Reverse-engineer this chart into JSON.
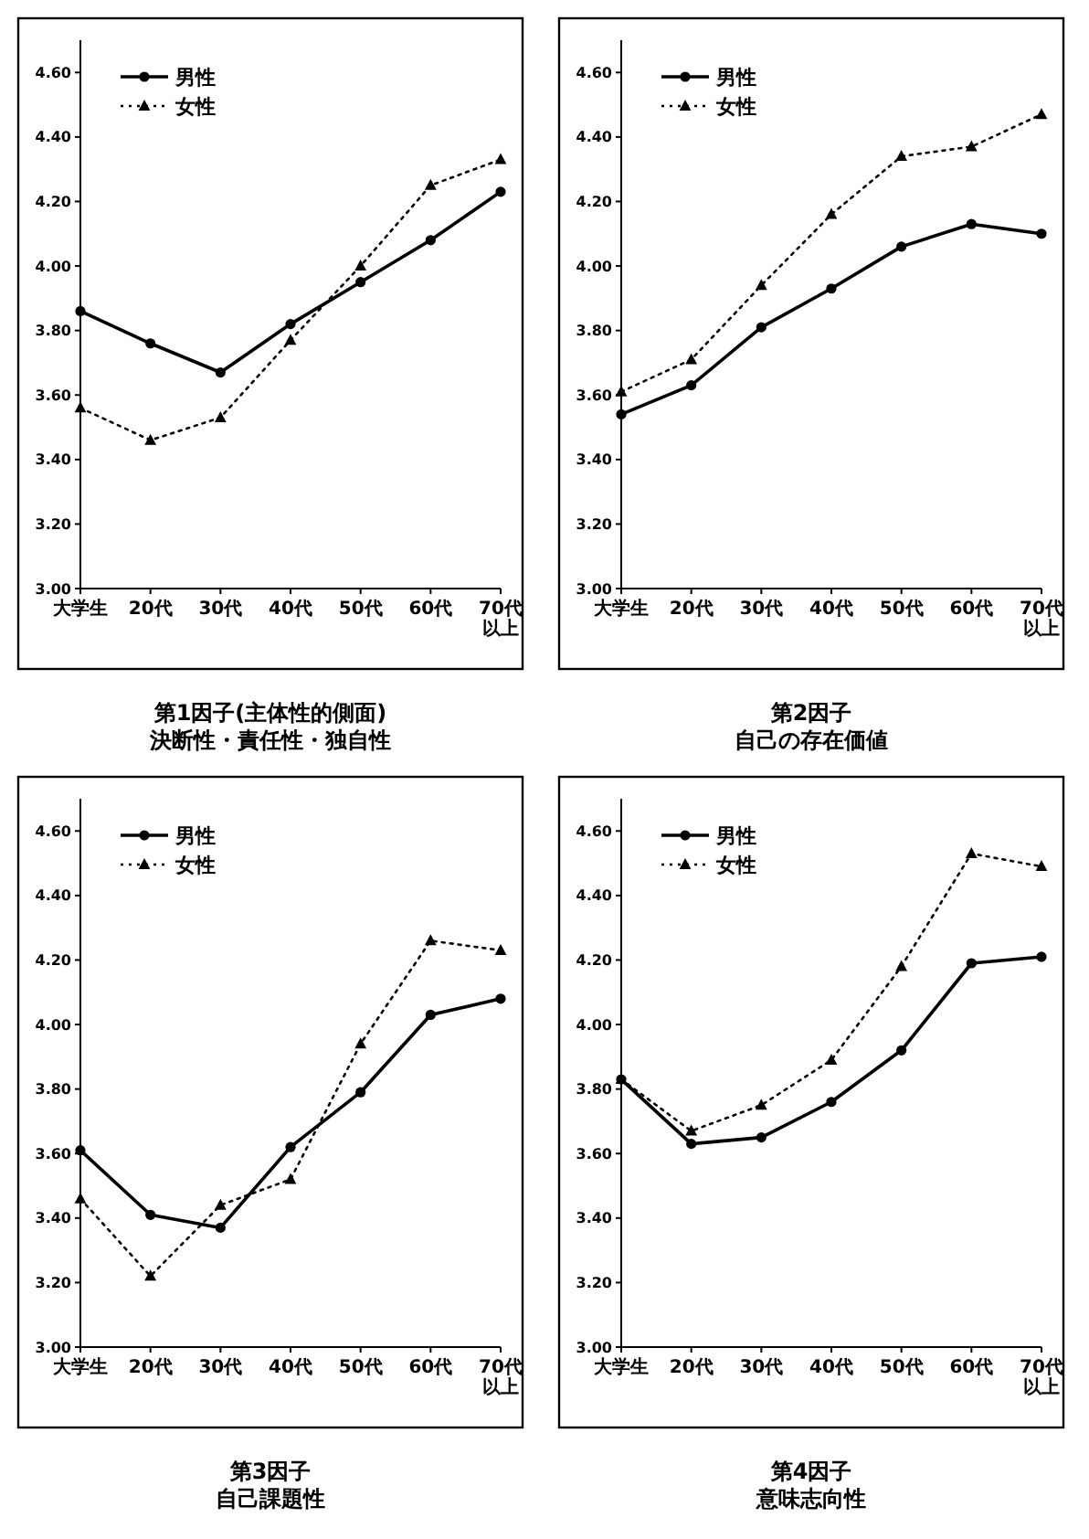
{
  "chart_data": [
    {
      "type": "line",
      "title": "第1因子(主体性的側面)",
      "subtitle": "決断性・責任性・独自性",
      "categories": [
        "大学生",
        "20代",
        "30代",
        "40代",
        "50代",
        "60代",
        "70代以上"
      ],
      "ylim": [
        3.0,
        4.7
      ],
      "yticks": [
        {
          "value": 3.0,
          "label": "3.00"
        },
        {
          "value": 3.2,
          "label": "3.20"
        },
        {
          "value": 3.4,
          "label": "3.40"
        },
        {
          "value": 3.6,
          "label": "3.60"
        },
        {
          "value": 3.8,
          "label": "3.80"
        },
        {
          "value": 4.0,
          "label": "4.00"
        },
        {
          "value": 4.2,
          "label": "4.20"
        },
        {
          "value": 4.4,
          "label": "4.40"
        },
        {
          "value": 4.6,
          "label": "4.60"
        }
      ],
      "legend": "top left",
      "grid": false,
      "series": [
        {
          "name": "男性",
          "color": "#000000",
          "marker": "circle",
          "line_style": "solid",
          "values": [
            3.86,
            3.76,
            3.67,
            3.82,
            3.95,
            4.08,
            4.23
          ]
        },
        {
          "name": "女性",
          "color": "#000000",
          "marker": "triangle",
          "line_style": "dotted",
          "values": [
            3.56,
            3.46,
            3.53,
            3.77,
            4.0,
            4.25,
            4.33
          ]
        }
      ]
    },
    {
      "type": "line",
      "title": "第2因子",
      "subtitle": "自己の存在価値",
      "categories": [
        "大学生",
        "20代",
        "30代",
        "40代",
        "50代",
        "60代",
        "70代以上"
      ],
      "ylim": [
        3.0,
        4.7
      ],
      "yticks": [
        {
          "value": 3.0,
          "label": "3.00"
        },
        {
          "value": 3.2,
          "label": "3.20"
        },
        {
          "value": 3.4,
          "label": "3.40"
        },
        {
          "value": 3.6,
          "label": "3.60"
        },
        {
          "value": 3.8,
          "label": "3.80"
        },
        {
          "value": 4.0,
          "label": "4.00"
        },
        {
          "value": 4.2,
          "label": "4.20"
        },
        {
          "value": 4.4,
          "label": "4.40"
        },
        {
          "value": 4.6,
          "label": "4.60"
        }
      ],
      "legend": "top left",
      "grid": false,
      "series": [
        {
          "name": "男性",
          "color": "#000000",
          "marker": "circle",
          "line_style": "solid",
          "values": [
            3.54,
            3.63,
            3.81,
            3.93,
            4.06,
            4.13,
            4.1
          ]
        },
        {
          "name": "女性",
          "color": "#000000",
          "marker": "triangle",
          "line_style": "dotted",
          "values": [
            3.61,
            3.71,
            3.94,
            4.16,
            4.34,
            4.37,
            4.47
          ]
        }
      ]
    },
    {
      "type": "line",
      "title": "第3因子",
      "subtitle": "自己課題性",
      "categories": [
        "大学生",
        "20代",
        "30代",
        "40代",
        "50代",
        "60代",
        "70代以上"
      ],
      "ylim": [
        3.0,
        4.7
      ],
      "yticks": [
        {
          "value": 3.0,
          "label": "3.00"
        },
        {
          "value": 3.2,
          "label": "3.20"
        },
        {
          "value": 3.4,
          "label": "3.40"
        },
        {
          "value": 3.6,
          "label": "3.60"
        },
        {
          "value": 3.8,
          "label": "3.80"
        },
        {
          "value": 4.0,
          "label": "4.00"
        },
        {
          "value": 4.2,
          "label": "4.20"
        },
        {
          "value": 4.4,
          "label": "4.40"
        },
        {
          "value": 4.6,
          "label": "4.60"
        }
      ],
      "legend": "top left",
      "grid": false,
      "series": [
        {
          "name": "男性",
          "color": "#000000",
          "marker": "circle",
          "line_style": "solid",
          "values": [
            3.61,
            3.41,
            3.37,
            3.62,
            3.79,
            4.03,
            4.08
          ]
        },
        {
          "name": "女性",
          "color": "#000000",
          "marker": "triangle",
          "line_style": "dotted",
          "values": [
            3.46,
            3.22,
            3.44,
            3.52,
            3.94,
            4.26,
            4.23
          ]
        }
      ]
    },
    {
      "type": "line",
      "title": "第4因子",
      "subtitle": "意味志向性",
      "categories": [
        "大学生",
        "20代",
        "30代",
        "40代",
        "50代",
        "60代",
        "70代以上"
      ],
      "ylim": [
        3.0,
        4.7
      ],
      "yticks": [
        {
          "value": 3.0,
          "label": "3.00"
        },
        {
          "value": 3.2,
          "label": "3.20"
        },
        {
          "value": 3.4,
          "label": "3.40"
        },
        {
          "value": 3.6,
          "label": "3.60"
        },
        {
          "value": 3.8,
          "label": "3.80"
        },
        {
          "value": 4.0,
          "label": "4.00"
        },
        {
          "value": 4.2,
          "label": "4.20"
        },
        {
          "value": 4.4,
          "label": "4.40"
        },
        {
          "value": 4.6,
          "label": "4.60"
        }
      ],
      "legend": "top left",
      "grid": false,
      "series": [
        {
          "name": "男性",
          "color": "#000000",
          "marker": "circle",
          "line_style": "solid",
          "values": [
            3.83,
            3.63,
            3.65,
            3.76,
            3.92,
            4.19,
            4.21
          ]
        },
        {
          "name": "女性",
          "color": "#000000",
          "marker": "triangle",
          "line_style": "dotted",
          "values": [
            3.83,
            3.67,
            3.75,
            3.89,
            4.18,
            4.53,
            4.49
          ]
        }
      ]
    }
  ]
}
